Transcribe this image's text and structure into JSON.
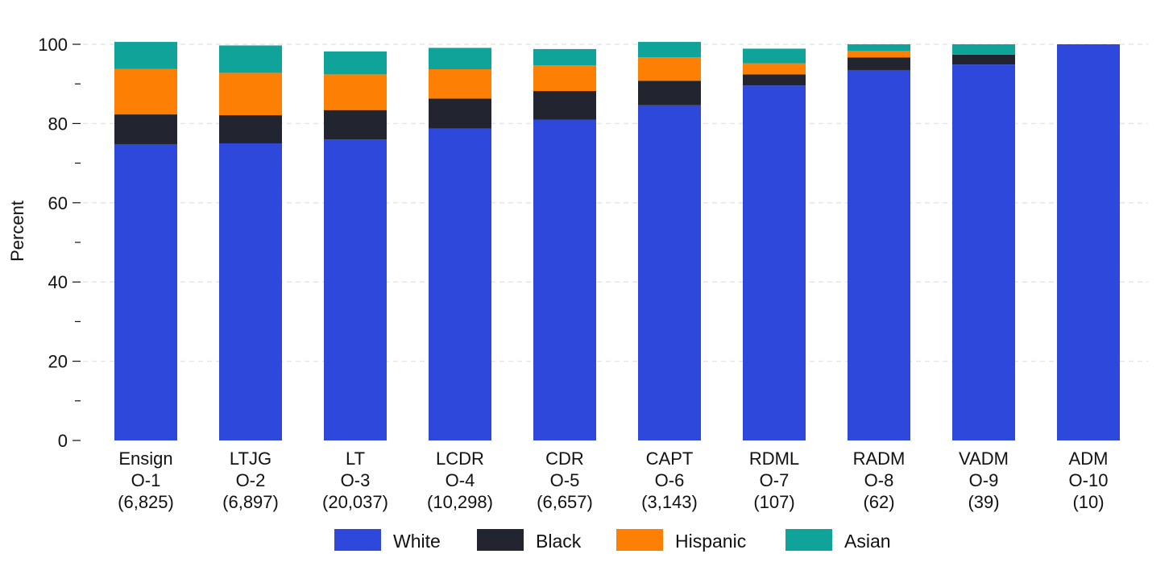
{
  "chart_data": {
    "type": "bar",
    "stacked": true,
    "title": "",
    "xlabel": "",
    "ylabel": "Percent",
    "ylim": [
      0,
      100
    ],
    "yticks": [
      0,
      20,
      40,
      60,
      80,
      100
    ],
    "grid": true,
    "legend_position": "bottom",
    "categories": [
      {
        "rank": "Ensign",
        "grade": "O-1",
        "count": "(6,825)"
      },
      {
        "rank": "LTJG",
        "grade": "O-2",
        "count": "(6,897)"
      },
      {
        "rank": "LT",
        "grade": "O-3",
        "count": "(20,037)"
      },
      {
        "rank": "LCDR",
        "grade": "O-4",
        "count": "(10,298)"
      },
      {
        "rank": "CDR",
        "grade": "O-5",
        "count": "(6,657)"
      },
      {
        "rank": "CAPT",
        "grade": "O-6",
        "count": "(3,143)"
      },
      {
        "rank": "RDML",
        "grade": "O-7",
        "count": "(107)"
      },
      {
        "rank": "RADM",
        "grade": "O-8",
        "count": "(62)"
      },
      {
        "rank": "VADM",
        "grade": "O-9",
        "count": "(39)"
      },
      {
        "rank": "ADM",
        "grade": "O-10",
        "count": "(10)"
      }
    ],
    "series": [
      {
        "name": "White",
        "color": "#2e48dc",
        "values": [
          74.8,
          75.0,
          76.0,
          78.7,
          81.0,
          84.6,
          89.6,
          93.5,
          94.9,
          100.0
        ]
      },
      {
        "name": "Black",
        "color": "#22252f",
        "values": [
          7.5,
          7.1,
          7.4,
          7.6,
          7.2,
          6.2,
          2.8,
          3.2,
          2.5,
          0.0
        ]
      },
      {
        "name": "Hispanic",
        "color": "#fd8004",
        "values": [
          11.5,
          10.7,
          9.0,
          7.4,
          6.5,
          5.9,
          2.8,
          1.6,
          0.0,
          0.0
        ]
      },
      {
        "name": "Asian",
        "color": "#10a39a",
        "values": [
          6.8,
          6.9,
          5.8,
          5.4,
          4.1,
          3.9,
          3.7,
          1.7,
          2.6,
          0.0
        ]
      }
    ]
  }
}
